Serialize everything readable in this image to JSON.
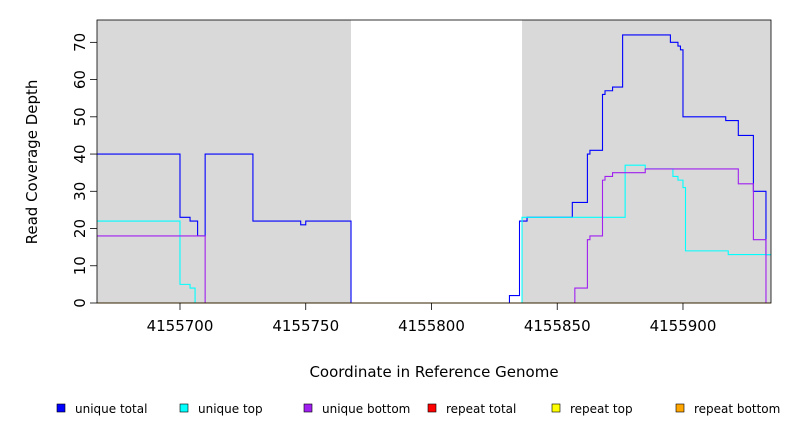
{
  "chart_data": {
    "type": "line",
    "title": "",
    "xlabel": "Coordinate in Reference Genome",
    "ylabel": "Read Coverage Depth",
    "xlim": [
      4155667,
      4155935
    ],
    "ylim": [
      0,
      76
    ],
    "x_ticks": [
      4155700,
      4155750,
      4155800,
      4155850,
      4155900
    ],
    "y_ticks": [
      0,
      10,
      20,
      30,
      40,
      50,
      60,
      70
    ],
    "shaded_regions": [
      [
        4155667,
        4155768
      ],
      [
        4155836,
        4155935
      ]
    ],
    "series": [
      {
        "name": "unique total",
        "color": "#0000ff",
        "step": [
          [
            4155667,
            40
          ],
          [
            4155700,
            23
          ],
          [
            4155704,
            22
          ],
          [
            4155707,
            18
          ],
          [
            4155710,
            40
          ],
          [
            4155729,
            22
          ],
          [
            4155748,
            21
          ],
          [
            4155750,
            22
          ],
          [
            4155768,
            0
          ],
          [
            4155831,
            2
          ],
          [
            4155835,
            22
          ],
          [
            4155838,
            23
          ],
          [
            4155856,
            27
          ],
          [
            4155862,
            40
          ],
          [
            4155863,
            41
          ],
          [
            4155868,
            56
          ],
          [
            4155869,
            57
          ],
          [
            4155872,
            58
          ],
          [
            4155876,
            72
          ],
          [
            4155895,
            70
          ],
          [
            4155898,
            69
          ],
          [
            4155899,
            68
          ],
          [
            4155900,
            50
          ],
          [
            4155917,
            49
          ],
          [
            4155922,
            45
          ],
          [
            4155928,
            30
          ],
          [
            4155933,
            13
          ],
          [
            4155935,
            13
          ]
        ]
      },
      {
        "name": "unique top",
        "color": "#00ffff",
        "step": [
          [
            4155667,
            22
          ],
          [
            4155700,
            5
          ],
          [
            4155704,
            4
          ],
          [
            4155706,
            0
          ],
          [
            4155836,
            23
          ],
          [
            4155877,
            37
          ],
          [
            4155885,
            36
          ],
          [
            4155896,
            34
          ],
          [
            4155898,
            33
          ],
          [
            4155900,
            31
          ],
          [
            4155901,
            14
          ],
          [
            4155918,
            13
          ],
          [
            4155935,
            13
          ]
        ]
      },
      {
        "name": "unique bottom",
        "color": "#a020f0",
        "step": [
          [
            4155667,
            18
          ],
          [
            4155708,
            18
          ],
          [
            4155710,
            0
          ],
          [
            4155857,
            4
          ],
          [
            4155862,
            17
          ],
          [
            4155863,
            18
          ],
          [
            4155868,
            33
          ],
          [
            4155869,
            34
          ],
          [
            4155872,
            35
          ],
          [
            4155885,
            36
          ],
          [
            4155922,
            32
          ],
          [
            4155928,
            17
          ],
          [
            4155933,
            0
          ],
          [
            4155935,
            0
          ]
        ]
      },
      {
        "name": "repeat total",
        "color": "#ff0000",
        "step": [
          [
            4155667,
            0
          ],
          [
            4155935,
            0
          ]
        ]
      },
      {
        "name": "repeat top",
        "color": "#ffff00",
        "step": [
          [
            4155667,
            0
          ],
          [
            4155935,
            0
          ]
        ]
      },
      {
        "name": "repeat bottom",
        "color": "#ffa500",
        "step": [
          [
            4155667,
            0
          ],
          [
            4155935,
            0
          ]
        ]
      }
    ],
    "legend_position": "bottom",
    "grid": false
  }
}
